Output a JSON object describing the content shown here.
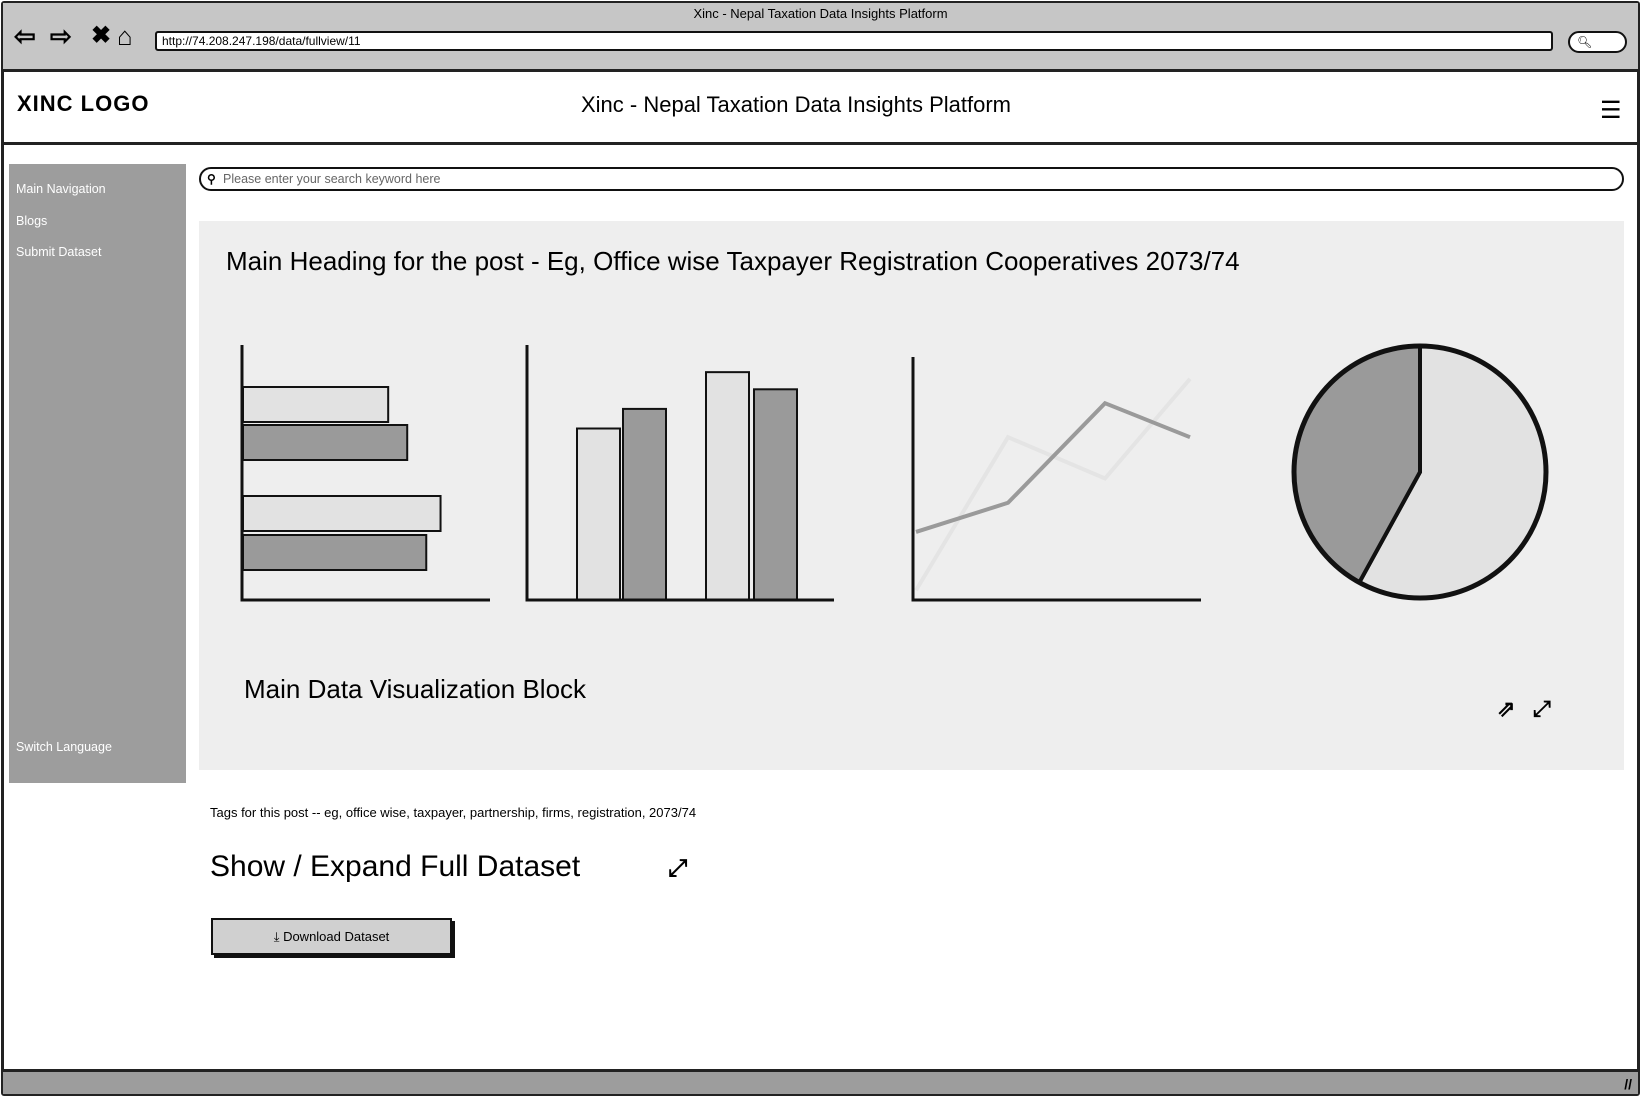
{
  "browser": {
    "window_title": "Xinc - Nepal Taxation Data Insights Platform",
    "url": "http://74.208.247.198/data/fullview/11",
    "icons": [
      "back-icon",
      "forward-icon",
      "stop-icon",
      "home-icon",
      "search-icon"
    ]
  },
  "header": {
    "logo": "XINC LOGO",
    "title": "Xinc - Nepal Taxation Data Insights Platform",
    "menu_icon": "menu-icon"
  },
  "sidebar": {
    "items": [
      {
        "label": "Main Navigation"
      },
      {
        "label": "Blogs"
      },
      {
        "label": "Submit Dataset"
      }
    ],
    "switch_language": "Switch Language"
  },
  "search": {
    "placeholder": "Please enter your search keyword here"
  },
  "post": {
    "heading": "Main Heading for the post - Eg, Office wise Taxpayer Registration Cooperatives 2073/74",
    "viz_label": "Main Data Visualization Block",
    "tags": "Tags for this post -- eg, office wise, taxpayer, partnership, firms, registration, 2073/74",
    "expand_title": "Show / Expand Full Dataset",
    "download_label": "Download Dataset"
  },
  "colors": {
    "sidebar": "#9d9d9d",
    "panel": "#eeeeee",
    "light_series": "#e2e2e2",
    "dark_series": "#9a9a9a",
    "chrome": "#c6c6c6"
  },
  "chart_data": [
    {
      "type": "bar",
      "orientation": "horizontal",
      "values": [
        61,
        69,
        83,
        77
      ],
      "ylim": [
        0,
        100
      ]
    },
    {
      "type": "bar",
      "orientation": "vertical",
      "series": [
        {
          "values": [
            70,
            93
          ]
        },
        {
          "values": [
            78,
            86
          ]
        }
      ],
      "ylim": [
        0,
        100
      ]
    },
    {
      "type": "line",
      "series": [
        {
          "values": [
            28,
            40,
            81,
            67
          ]
        },
        {
          "values": [
            4,
            67,
            50,
            91
          ]
        }
      ],
      "ylim": [
        0,
        100
      ]
    },
    {
      "type": "pie",
      "values": [
        58,
        42
      ]
    }
  ]
}
